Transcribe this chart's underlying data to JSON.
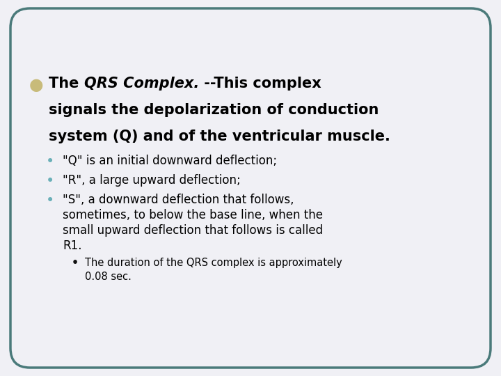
{
  "bg_color": "#f0f0f5",
  "border_color": "#4a7a7a",
  "border_linewidth": 2.5,
  "bullet1_color": "#c8bb7a",
  "bullet2_color": "#6ab0b8",
  "bullet3_color": "#111111",
  "main_fontsize": 15,
  "sub_fontsize": 12,
  "subsub_fontsize": 10.5,
  "title_normal1": "The ",
  "title_italic": "QRS Complex.",
  "title_normal2": " --This complex",
  "title_line2": "signals the depolarization of conduction",
  "title_line3": "system (Q) and of the ventricular muscle.",
  "sub1": "\"Q\" is an initial downward deflection;",
  "sub2": "\"R\", a large upward deflection;",
  "sub3_line1": "\"S\", a downward deflection that follows,",
  "sub3_line2": "sometimes, to below the base line, when the",
  "sub3_line3": "small upward deflection that follows is called",
  "sub3_line4": "R1.",
  "subsub1": "The duration of the QRS complex is approximately",
  "subsub2": "0.08 sec."
}
